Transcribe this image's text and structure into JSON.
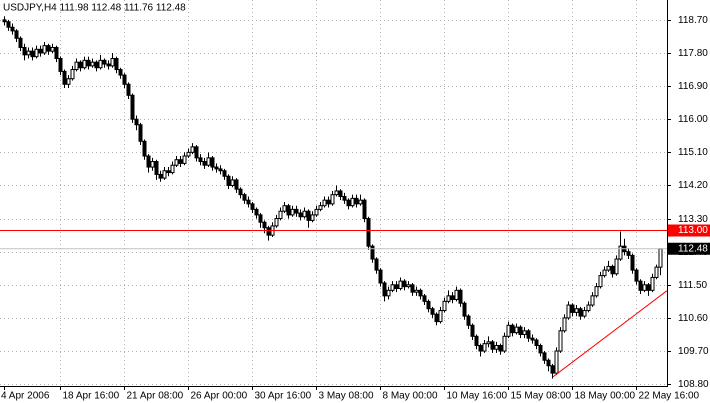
{
  "chart_data": {
    "type": "candlestick",
    "title": "USDJPY,H4 111.98 112.48 111.76 112.48",
    "color": "#000000",
    "up_fill": "#ffffff",
    "down_fill": "#000000",
    "grid": true,
    "ylim": [
      108.75,
      119.24
    ],
    "yticks": [
      {
        "value": 118.7,
        "label": "118.70"
      },
      {
        "value": 117.8,
        "label": "117.80"
      },
      {
        "value": 116.9,
        "label": "116.90"
      },
      {
        "value": 116.0,
        "label": "116.00"
      },
      {
        "value": 115.1,
        "label": "115.10"
      },
      {
        "value": 114.2,
        "label": "114.20"
      },
      {
        "value": 113.3,
        "label": "113.30"
      },
      {
        "value": 112.4,
        "label": "112.40"
      },
      {
        "value": 111.5,
        "label": "111.50"
      },
      {
        "value": 110.6,
        "label": "110.60"
      },
      {
        "value": 109.7,
        "label": "109.70"
      },
      {
        "value": 108.8,
        "label": "108.80"
      }
    ],
    "xticks": [
      {
        "value": 0,
        "label": "4 Apr 2006"
      },
      {
        "value": 14,
        "label": "18 Apr 16:00"
      },
      {
        "value": 30,
        "label": "21 Apr 08:00"
      },
      {
        "value": 46,
        "label": "26 Apr 00:00"
      },
      {
        "value": 62,
        "label": "30 Apr 16:00"
      },
      {
        "value": 78,
        "label": "3 May 08:00"
      },
      {
        "value": 94,
        "label": "8 May 00:00"
      },
      {
        "value": 110,
        "label": "10 May 16:00"
      },
      {
        "value": 126,
        "label": "15 May 08:00"
      },
      {
        "value": 142,
        "label": "18 May 00:00"
      },
      {
        "value": 158,
        "label": "22 May 16:00"
      }
    ],
    "open": [
      118.7,
      118.65,
      118.5,
      118.4,
      118.2,
      117.95,
      117.75,
      117.85,
      117.7,
      117.9,
      117.8,
      118.0,
      117.85,
      117.95,
      117.65,
      117.3,
      116.95,
      117.1,
      117.35,
      117.55,
      117.4,
      117.6,
      117.45,
      117.55,
      117.4,
      117.6,
      117.5,
      117.45,
      117.65,
      117.35,
      117.2,
      116.95,
      116.65,
      116.0,
      115.85,
      115.4,
      115.0,
      114.7,
      114.85,
      114.5,
      114.4,
      114.6,
      114.55,
      114.75,
      114.9,
      114.8,
      115.0,
      115.1,
      115.25,
      114.95,
      114.85,
      114.75,
      114.95,
      114.7,
      114.65,
      114.6,
      114.45,
      114.2,
      114.35,
      114.1,
      113.95,
      113.8,
      113.7,
      113.55,
      113.4,
      113.2,
      113.05,
      112.85,
      113.1,
      113.3,
      113.5,
      113.65,
      113.4,
      113.55,
      113.45,
      113.35,
      113.5,
      113.25,
      113.4,
      113.55,
      113.65,
      113.8,
      113.7,
      113.95,
      114.05,
      113.9,
      113.8,
      113.65,
      113.85,
      113.7,
      113.8,
      113.3,
      112.55,
      112.2,
      111.9,
      111.55,
      111.2,
      111.35,
      111.5,
      111.4,
      111.6,
      111.45,
      111.5,
      111.3,
      111.35,
      111.2,
      111.05,
      110.85,
      110.7,
      110.5,
      110.8,
      111.05,
      111.2,
      111.1,
      111.35,
      111.0,
      110.65,
      110.4,
      110.1,
      109.85,
      109.7,
      109.9,
      109.95,
      109.75,
      109.85,
      109.7,
      110.1,
      110.4,
      110.2,
      110.35,
      110.15,
      110.25,
      110.05,
      110.0,
      109.85,
      109.65,
      109.45,
      109.3,
      109.1,
      109.7,
      110.25,
      110.6,
      110.95,
      110.75,
      110.85,
      110.65,
      110.8,
      110.95,
      111.2,
      111.45,
      111.75,
      111.9,
      112.0,
      111.8,
      112.2,
      112.55,
      112.4,
      112.3,
      111.9,
      111.6,
      111.35,
      111.5,
      111.35,
      111.7,
      111.98
    ],
    "high": [
      118.8,
      118.7,
      118.6,
      118.45,
      118.25,
      118.05,
      117.95,
      117.95,
      118.0,
      118.0,
      118.1,
      118.05,
      118.05,
      118.0,
      117.7,
      117.35,
      117.2,
      117.45,
      117.65,
      117.6,
      117.7,
      117.7,
      117.65,
      117.6,
      117.75,
      117.65,
      117.6,
      117.8,
      117.7,
      117.4,
      117.25,
      117.0,
      116.7,
      116.1,
      115.9,
      115.45,
      115.05,
      114.95,
      114.9,
      114.6,
      114.7,
      114.7,
      114.85,
      115.0,
      115.0,
      115.1,
      115.2,
      115.35,
      115.3,
      115.05,
      114.95,
      115.1,
      115.0,
      114.8,
      114.75,
      114.65,
      114.5,
      114.45,
      114.4,
      114.15,
      114.0,
      113.9,
      113.75,
      113.6,
      113.45,
      113.25,
      113.1,
      113.2,
      113.4,
      113.6,
      113.75,
      113.7,
      113.65,
      113.65,
      113.55,
      113.6,
      113.55,
      113.5,
      113.65,
      113.75,
      113.9,
      113.9,
      114.05,
      114.2,
      114.1,
      114.0,
      113.85,
      113.95,
      113.95,
      113.95,
      113.85,
      113.35,
      112.6,
      112.25,
      111.95,
      111.6,
      111.45,
      111.6,
      111.6,
      111.7,
      111.65,
      111.6,
      111.55,
      111.45,
      111.4,
      111.25,
      111.1,
      110.9,
      110.75,
      110.9,
      111.15,
      111.35,
      111.3,
      111.45,
      111.4,
      111.05,
      110.7,
      110.45,
      110.15,
      109.9,
      110.0,
      110.1,
      110.0,
      109.95,
      109.9,
      110.2,
      110.5,
      110.45,
      110.45,
      110.4,
      110.35,
      110.3,
      110.15,
      110.05,
      109.9,
      109.7,
      109.5,
      109.35,
      109.8,
      110.35,
      110.7,
      111.05,
      111.0,
      110.95,
      110.9,
      110.9,
      111.05,
      111.3,
      111.55,
      111.85,
      112.0,
      112.15,
      112.05,
      112.3,
      112.95,
      112.75,
      112.5,
      112.35,
      111.95,
      111.65,
      111.6,
      111.55,
      111.8,
      112.05,
      112.48
    ],
    "low": [
      118.55,
      118.4,
      118.3,
      118.1,
      117.85,
      117.6,
      117.65,
      117.6,
      117.65,
      117.7,
      117.75,
      117.75,
      117.8,
      117.55,
      117.2,
      116.85,
      116.85,
      117.05,
      117.3,
      117.3,
      117.35,
      117.35,
      117.4,
      117.3,
      117.35,
      117.4,
      117.35,
      117.4,
      117.25,
      117.1,
      116.85,
      116.55,
      115.9,
      115.7,
      115.3,
      114.9,
      114.55,
      114.6,
      114.35,
      114.3,
      114.35,
      114.45,
      114.5,
      114.7,
      114.7,
      114.75,
      114.95,
      115.05,
      114.85,
      114.75,
      114.65,
      114.7,
      114.6,
      114.55,
      114.5,
      114.35,
      114.1,
      114.15,
      114.0,
      113.85,
      113.7,
      113.6,
      113.45,
      113.3,
      113.05,
      112.9,
      112.7,
      112.8,
      113.05,
      113.25,
      113.45,
      113.3,
      113.35,
      113.35,
      113.25,
      113.3,
      113.05,
      113.2,
      113.35,
      113.5,
      113.6,
      113.6,
      113.65,
      113.9,
      113.8,
      113.7,
      113.55,
      113.6,
      113.6,
      113.65,
      113.2,
      112.45,
      112.1,
      111.8,
      111.45,
      111.05,
      111.1,
      111.3,
      111.3,
      111.35,
      111.35,
      111.4,
      111.2,
      111.2,
      111.1,
      110.95,
      110.75,
      110.6,
      110.4,
      110.45,
      110.75,
      111.0,
      111.0,
      111.05,
      110.9,
      110.55,
      110.3,
      110.0,
      109.75,
      109.55,
      109.65,
      109.8,
      109.65,
      109.65,
      109.6,
      109.65,
      110.05,
      110.1,
      110.15,
      110.05,
      110.05,
      109.95,
      109.9,
      109.75,
      109.55,
      109.35,
      109.15,
      108.95,
      109.05,
      109.65,
      110.2,
      110.55,
      110.65,
      110.65,
      110.55,
      110.6,
      110.75,
      110.9,
      111.15,
      111.4,
      111.7,
      111.85,
      111.7,
      111.75,
      112.15,
      112.3,
      112.2,
      111.8,
      111.5,
      111.25,
      111.3,
      111.2,
      111.3,
      111.65,
      111.76
    ],
    "close": [
      118.65,
      118.5,
      118.4,
      118.2,
      117.95,
      117.75,
      117.85,
      117.7,
      117.9,
      117.8,
      118.0,
      117.85,
      117.95,
      117.65,
      117.3,
      116.95,
      117.1,
      117.35,
      117.55,
      117.4,
      117.6,
      117.45,
      117.55,
      117.4,
      117.6,
      117.5,
      117.45,
      117.65,
      117.35,
      117.2,
      116.95,
      116.65,
      116.0,
      115.85,
      115.4,
      115.0,
      114.7,
      114.85,
      114.5,
      114.4,
      114.6,
      114.55,
      114.75,
      114.9,
      114.8,
      115.0,
      115.1,
      115.25,
      114.95,
      114.85,
      114.75,
      114.95,
      114.7,
      114.65,
      114.6,
      114.45,
      114.2,
      114.35,
      114.1,
      113.95,
      113.8,
      113.7,
      113.55,
      113.4,
      113.2,
      113.05,
      112.85,
      113.1,
      113.3,
      113.5,
      113.65,
      113.4,
      113.55,
      113.45,
      113.35,
      113.5,
      113.25,
      113.4,
      113.55,
      113.65,
      113.8,
      113.7,
      113.95,
      114.05,
      113.9,
      113.8,
      113.65,
      113.85,
      113.7,
      113.8,
      113.3,
      112.55,
      112.2,
      111.9,
      111.55,
      111.2,
      111.35,
      111.5,
      111.4,
      111.6,
      111.45,
      111.5,
      111.3,
      111.35,
      111.2,
      111.05,
      110.85,
      110.7,
      110.5,
      110.8,
      111.05,
      111.2,
      111.1,
      111.35,
      111.0,
      110.65,
      110.4,
      110.1,
      109.85,
      109.7,
      109.9,
      109.95,
      109.75,
      109.85,
      109.7,
      110.1,
      110.4,
      110.2,
      110.35,
      110.15,
      110.25,
      110.05,
      110.0,
      109.85,
      109.65,
      109.45,
      109.3,
      109.1,
      109.7,
      110.25,
      110.6,
      110.95,
      110.75,
      110.85,
      110.65,
      110.8,
      110.95,
      111.2,
      111.45,
      111.75,
      111.9,
      112.0,
      111.8,
      112.2,
      112.55,
      112.4,
      112.3,
      111.9,
      111.6,
      111.35,
      111.5,
      111.35,
      111.7,
      111.98,
      112.48
    ],
    "hline": {
      "value": 113.0,
      "label": "113.00",
      "color": "#ff0000"
    },
    "last_price": {
      "value": 112.48,
      "label": "112.48",
      "color": "#c0c0c0"
    },
    "trendline": {
      "x": [
        137.25,
        165.75
      ],
      "y": [
        109.0,
        111.34
      ],
      "color": "#ff0000"
    }
  }
}
